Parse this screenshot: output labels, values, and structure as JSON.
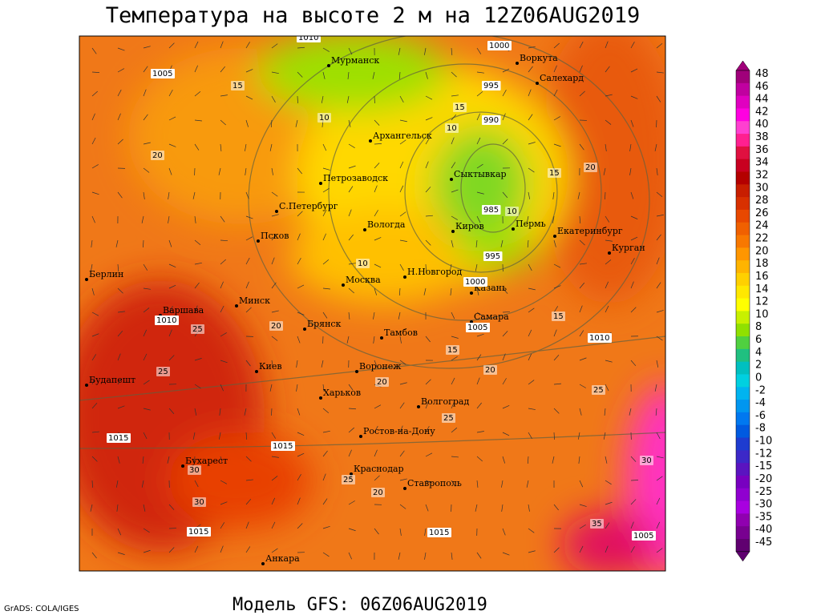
{
  "header": {
    "title": "Температура на высоте 2 м на 12Z06AUG2019"
  },
  "footer": {
    "model": "Модель GFS: 06Z06AUG2019",
    "credit": "GrADS: COLA/IGES"
  },
  "cities": [
    "Мурманск",
    "Воркута",
    "Салехард",
    "Архангельск",
    "Петрозаводск",
    "Сыктывкар",
    "С.Петербург",
    "Вологда",
    "Киров",
    "Пермь",
    "Екатеринбург",
    "Курган",
    "Псков",
    "Берлин",
    "Н.Новгород",
    "Москва",
    "Казань",
    "Варшава",
    "Минск",
    "Самара",
    "Брянск",
    "Тамбов",
    "Киев",
    "Воронеж",
    "Будапешт",
    "Харьков",
    "Волгоград",
    "Ростов-на-Дону",
    "Бухарест",
    "Краснодар",
    "Ставрополь",
    "Анкара"
  ],
  "contour_labels": [
    "1010",
    "1000",
    "1005",
    "995",
    "990",
    "985",
    "995",
    "1000",
    "1005",
    "1010",
    "1010",
    "1015",
    "1015",
    "1015",
    "1015",
    "1005",
    "10",
    "15",
    "20",
    "15",
    "10",
    "10",
    "15",
    "20",
    "25",
    "20",
    "25",
    "30",
    "35",
    "25",
    "30",
    "20",
    "25",
    "15",
    "20",
    "10",
    "15",
    "20",
    "25",
    "30"
  ],
  "colorbar": {
    "labels": [
      48,
      46,
      44,
      42,
      40,
      38,
      36,
      34,
      32,
      30,
      28,
      26,
      24,
      22,
      20,
      18,
      16,
      14,
      12,
      10,
      8,
      6,
      4,
      2,
      0,
      -2,
      -4,
      -6,
      -8,
      -10,
      -12,
      -15,
      -20,
      -25,
      -30,
      -35,
      -40,
      -45
    ],
    "colors": [
      "#a0007a",
      "#c000a0",
      "#e000c0",
      "#ff00e0",
      "#ff40d0",
      "#ff2090",
      "#e01040",
      "#c80020",
      "#b40000",
      "#c81e00",
      "#d83000",
      "#e84800",
      "#f06000",
      "#f87800",
      "#ff9600",
      "#ffb400",
      "#ffd000",
      "#ffe800",
      "#ffff00",
      "#c8f000",
      "#90e000",
      "#50d040",
      "#20c080",
      "#00c0c0",
      "#00d0e0",
      "#00b4f0",
      "#0096f0",
      "#0078f0",
      "#005ae0",
      "#1e3cd0",
      "#3c28c8",
      "#5a14c0",
      "#7800c0",
      "#9000d0",
      "#a800e0",
      "#9000b0",
      "#780090",
      "#600070"
    ]
  }
}
